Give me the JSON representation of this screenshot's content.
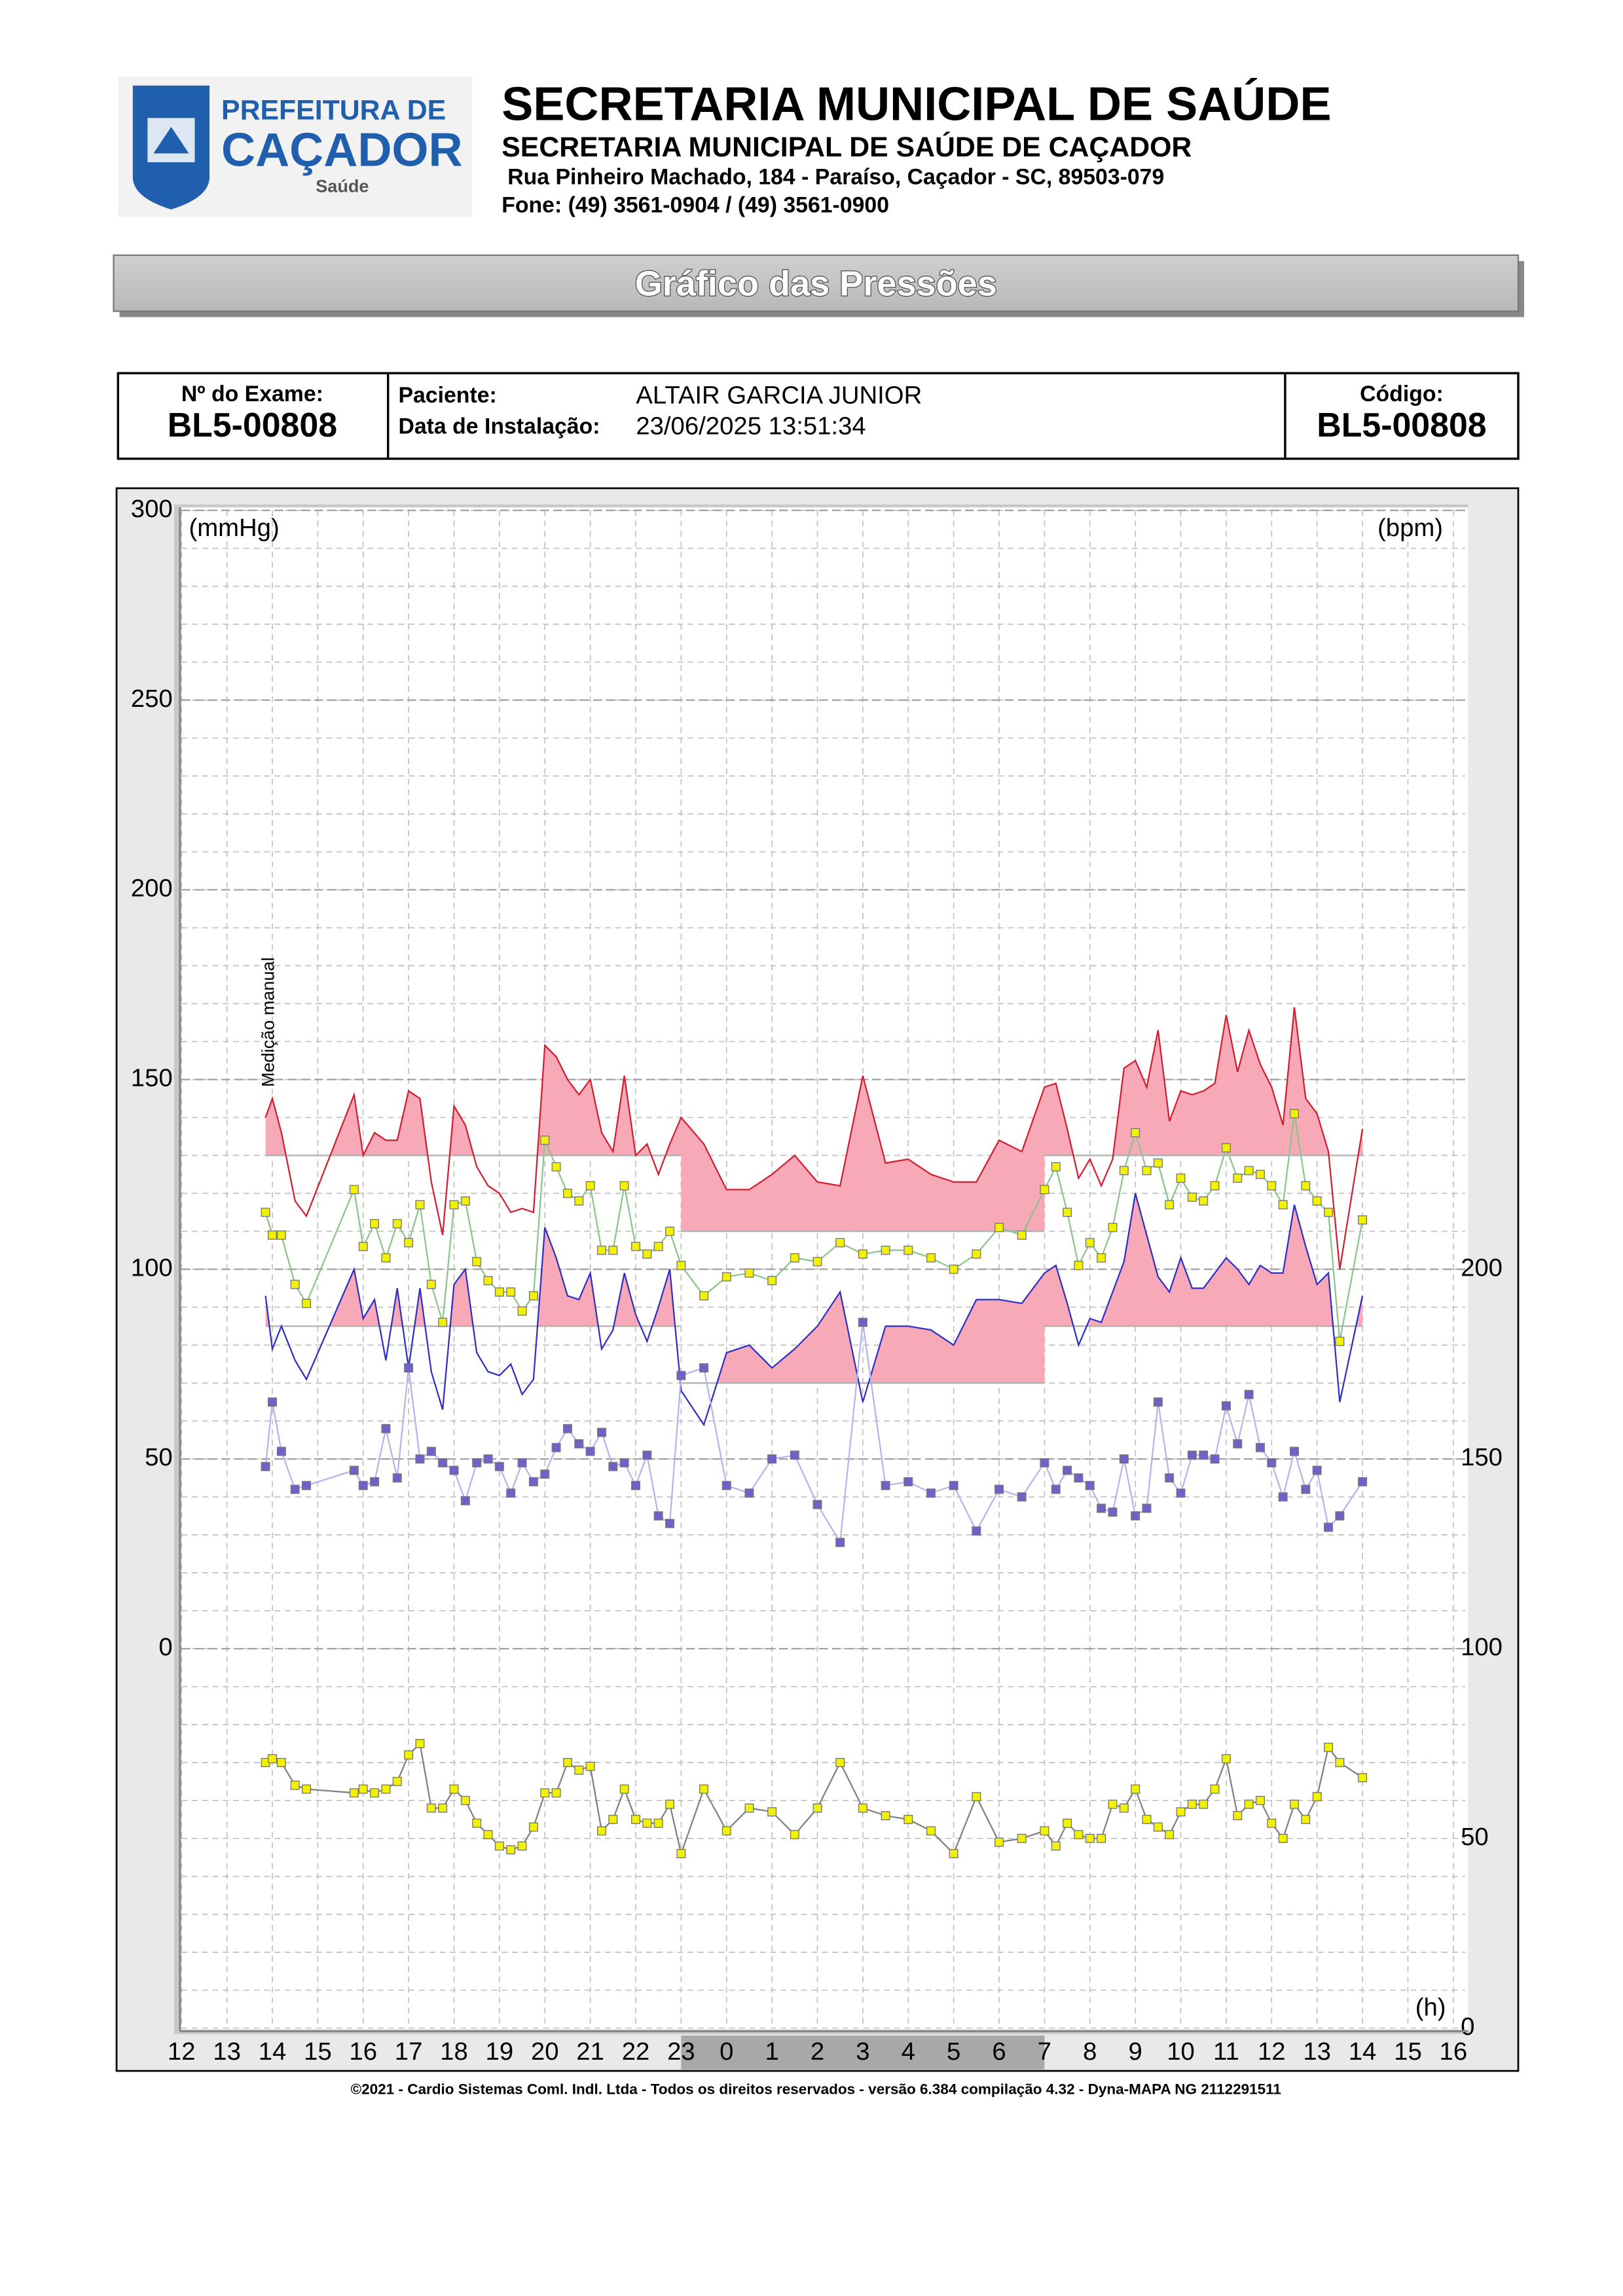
{
  "header": {
    "logo_line1": "PREFEITURA DE",
    "logo_line2": "CAÇADOR",
    "logo_line3": "Saúde",
    "title": "SECRETARIA MUNICIPAL DE SAÚDE",
    "subtitle": "SECRETARIA MUNICIPAL DE SAÚDE DE CAÇADOR",
    "address": "Rua Pinheiro Machado, 184 - Paraíso, Caçador - SC, 89503-079",
    "phone": "Fone: (49) 3561-0904  / (49) 3561-0900"
  },
  "banner": "Gráfico das Pressões",
  "info": {
    "exam_label": "Nº do Exame:",
    "exam": "BL5-00808",
    "patient_label": "Paciente:",
    "patient": "ALTAIR GARCIA JUNIOR",
    "install_label": "Data de Instalação:",
    "install_date": "23/06/2025 13:51:34",
    "code_label": "Código:",
    "code": "BL5-00808"
  },
  "chart_data": {
    "type": "line",
    "y_unit": "(mmHg)",
    "y2_unit": "(bpm)",
    "x_unit": "(h)",
    "annotation": {
      "text": "Medição manual",
      "x": 14
    },
    "xlim": [
      12,
      40
    ],
    "xticks": [
      12,
      13,
      14,
      15,
      16,
      17,
      18,
      19,
      20,
      21,
      22,
      23,
      {
        "value": 24,
        "label": "0"
      },
      {
        "value": 25,
        "label": "1"
      },
      {
        "value": 26,
        "label": "2"
      },
      {
        "value": 27,
        "label": "3"
      },
      {
        "value": 28,
        "label": "4"
      },
      {
        "value": 29,
        "label": "5"
      },
      {
        "value": 30,
        "label": "6"
      },
      {
        "value": 31,
        "label": "7"
      },
      {
        "value": 32,
        "label": "8"
      },
      {
        "value": 33,
        "label": "9"
      },
      {
        "value": 34,
        "label": "10"
      },
      {
        "value": 35,
        "label": "11"
      },
      {
        "value": 36,
        "label": "12"
      },
      {
        "value": 37,
        "label": "13"
      },
      {
        "value": 38,
        "label": "14"
      },
      {
        "value": 39,
        "label": "15"
      },
      {
        "value": 40,
        "label": "16"
      }
    ],
    "ylim": [
      -100,
      300
    ],
    "yticks": [
      0,
      50,
      100,
      150,
      200,
      250,
      300
    ],
    "y2lim": [
      0,
      400
    ],
    "y2ticks": [
      0,
      50,
      100,
      150,
      200
    ],
    "grid": true,
    "sleep_period": [
      23,
      31
    ],
    "sleep_band_color": "#a8a8a8",
    "awake_limits": {
      "systolic": 130,
      "diastolic": 85
    },
    "sleep_limits": {
      "systolic": 110,
      "diastolic": 70
    },
    "limit_color": "#b0b0b0",
    "x": [
      13.85,
      14,
      14.2,
      14.5,
      14.75,
      15.8,
      16,
      16.25,
      16.5,
      16.75,
      17,
      17.25,
      17.5,
      17.75,
      18,
      18.25,
      18.5,
      18.75,
      19,
      19.25,
      19.5,
      19.75,
      20,
      20.25,
      20.5,
      20.75,
      21,
      21.25,
      21.5,
      21.75,
      22,
      22.25,
      22.5,
      22.75,
      23,
      23.5,
      24,
      24.5,
      25,
      25.5,
      26,
      26.5,
      27,
      27.5,
      28,
      28.5,
      29,
      29.5,
      30,
      30.5,
      31,
      31.25,
      31.5,
      31.75,
      32,
      32.25,
      32.5,
      32.75,
      33,
      33.25,
      33.5,
      33.75,
      34,
      34.25,
      34.5,
      34.75,
      35,
      35.25,
      35.5,
      35.75,
      36,
      36.25,
      36.5,
      36.75,
      37,
      37.25,
      37.5,
      38
    ],
    "series": [
      {
        "color": "#d02030",
        "limit": "systolic",
        "fill": "#f7a9b8",
        "values": [
          140,
          145,
          136,
          118,
          114,
          146,
          130,
          136,
          134,
          134,
          147,
          145,
          123,
          109,
          143,
          138,
          127,
          122,
          120,
          115,
          116,
          115,
          159,
          156,
          150,
          146,
          150,
          136,
          131,
          151,
          130,
          133,
          125,
          133,
          140,
          133,
          121,
          121,
          125,
          130,
          123,
          122,
          151,
          128,
          129,
          125,
          123,
          123,
          134,
          131,
          148,
          149,
          137,
          124,
          129,
          122,
          129,
          153,
          155,
          148,
          163,
          139,
          147,
          146,
          147,
          149,
          167,
          152,
          163,
          154,
          148,
          138,
          169,
          145,
          141,
          131,
          100,
          137
        ]
      },
      {
        "color": "#3030c0",
        "limit": "diastolic",
        "fill": "#f7a9b8",
        "values": [
          93,
          79,
          85,
          76,
          71,
          100,
          87,
          92,
          76,
          95,
          74,
          95,
          73,
          63,
          96,
          100,
          78,
          73,
          72,
          75,
          67,
          71,
          111,
          103,
          93,
          92,
          99,
          79,
          84,
          99,
          88,
          81,
          90,
          100,
          68,
          59,
          78,
          80,
          74,
          79,
          85,
          94,
          65,
          85,
          85,
          84,
          80,
          92,
          92,
          91,
          99,
          101,
          91,
          80,
          87,
          86,
          94,
          102,
          120,
          109,
          98,
          94,
          103,
          95,
          95,
          99,
          103,
          100,
          96,
          101,
          99,
          99,
          117,
          106,
          96,
          99,
          65,
          93
        ]
      },
      {
        "color": "#8cc48c",
        "marker_color": "#f2f200",
        "values": [
          115,
          109,
          109,
          96,
          91,
          121,
          106,
          112,
          103,
          112,
          107,
          117,
          96,
          86,
          117,
          118,
          102,
          97,
          94,
          94,
          89,
          93,
          134,
          127,
          120,
          118,
          122,
          105,
          105,
          122,
          106,
          104,
          106,
          110,
          101,
          93,
          98,
          99,
          97,
          103,
          102,
          107,
          104,
          105,
          105,
          103,
          100,
          104,
          111,
          109,
          121,
          127,
          115,
          101,
          107,
          103,
          111,
          126,
          136,
          126,
          128,
          117,
          124,
          119,
          118,
          122,
          132,
          124,
          126,
          125,
          122,
          117,
          141,
          122,
          118,
          115,
          81,
          113
        ]
      },
      {
        "color": "#b4b4ec",
        "marker_color": "#7060c8",
        "values": [
          48,
          65,
          52,
          42,
          43,
          47,
          43,
          44,
          58,
          45,
          74,
          50,
          52,
          49,
          47,
          39,
          49,
          50,
          48,
          41,
          49,
          44,
          46,
          53,
          58,
          54,
          52,
          57,
          48,
          49,
          43,
          51,
          35,
          33,
          72,
          74,
          43,
          41,
          50,
          51,
          38,
          28,
          86,
          43,
          44,
          41,
          43,
          31,
          42,
          40,
          49,
          42,
          47,
          45,
          43,
          37,
          36,
          50,
          35,
          37,
          65,
          45,
          41,
          51,
          51,
          50,
          64,
          54,
          67,
          53,
          49,
          40,
          52,
          42,
          47,
          32,
          35,
          44
        ]
      },
      {
        "color": "#808080",
        "marker_color": "#f2f200",
        "axis": "y2",
        "values": [
          70,
          71,
          70,
          64,
          63,
          62,
          63,
          62,
          63,
          65,
          72,
          75,
          58,
          58,
          63,
          60,
          54,
          51,
          48,
          47,
          48,
          53,
          62,
          62,
          70,
          68,
          69,
          52,
          55,
          63,
          55,
          54,
          54,
          59,
          46,
          63,
          52,
          58,
          57,
          51,
          58,
          70,
          58,
          56,
          55,
          52,
          46,
          61,
          49,
          50,
          52,
          48,
          54,
          51,
          50,
          50,
          59,
          58,
          63,
          55,
          53,
          51,
          57,
          59,
          59,
          63,
          71,
          56,
          59,
          60,
          54,
          50,
          59,
          55,
          61,
          74,
          70,
          66
        ]
      }
    ]
  },
  "footer": "©2021 - Cardio Sistemas Coml. Indl. Ltda - Todos os direitos reservados - versão 6.384 compilação 4.32 - Dyna-MAPA NG 2112291511"
}
